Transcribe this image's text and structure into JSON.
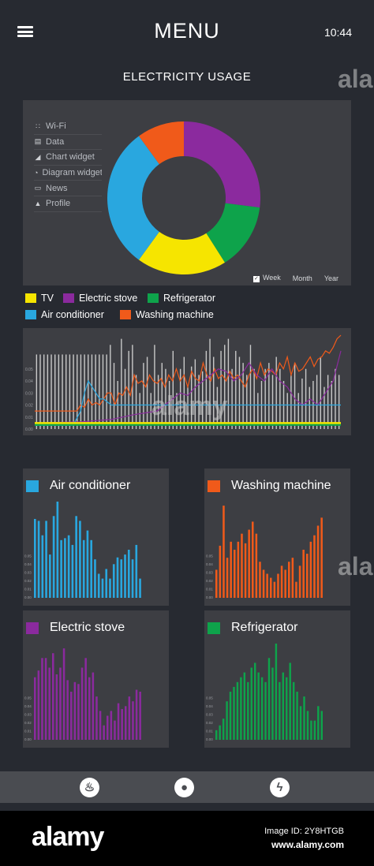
{
  "header": {
    "title": "MENU",
    "time": "10:44"
  },
  "section_title": "ELECTRICITY USAGE",
  "side_menu": [
    {
      "label": "Wi-Fi",
      "icon": "wifi-icon",
      "glyph": "∷"
    },
    {
      "label": "Data",
      "icon": "database-icon",
      "glyph": "▤"
    },
    {
      "label": "Chart widget",
      "icon": "chart-icon",
      "glyph": "◢"
    },
    {
      "label": "Diagram widget",
      "icon": "pie-icon",
      "glyph": "◔"
    },
    {
      "label": "News",
      "icon": "chat-icon",
      "glyph": "▭"
    },
    {
      "label": "Profile",
      "icon": "person-icon",
      "glyph": "▲"
    }
  ],
  "period": {
    "week": "Week",
    "month": "Month",
    "year": "Year",
    "checked": "week"
  },
  "colors": {
    "tv": "#f6e500",
    "electric_stove": "#8b2a9e",
    "refrigerator": "#0ea34b",
    "air_conditioner": "#29a7df",
    "washing_machine": "#f05a1a",
    "bars": "#c9c9c9"
  },
  "legend": [
    {
      "key": "tv",
      "label": "TV"
    },
    {
      "key": "electric_stove",
      "label": "Electric stove"
    },
    {
      "key": "refrigerator",
      "label": "Refrigerator"
    },
    {
      "key": "air_conditioner",
      "label": "Air conditioner"
    },
    {
      "key": "washing_machine",
      "label": "Washing machine"
    }
  ],
  "bar_panels": [
    {
      "key": "air_conditioner",
      "title": "Air conditioner"
    },
    {
      "key": "washing_machine",
      "title": "Washing machine"
    },
    {
      "key": "electric_stove",
      "title": "Electric stove"
    },
    {
      "key": "refrigerator",
      "title": "Refrigerator"
    }
  ],
  "nav_icons": [
    "flame-icon",
    "water-drop-icon",
    "lightning-icon"
  ],
  "footer": {
    "logo": "alamy",
    "image_id": "Image ID: 2Y8HTGB",
    "url": "www.alamy.com"
  },
  "watermark": "alamy",
  "chart_data": [
    {
      "type": "pie",
      "variant": "donut",
      "slices": [
        {
          "name": "Electric stove",
          "color_key": "electric_stove",
          "value": 27
        },
        {
          "name": "Refrigerator",
          "color_key": "refrigerator",
          "value": 14
        },
        {
          "name": "TV",
          "color_key": "tv",
          "value": 19
        },
        {
          "name": "Air conditioner",
          "color_key": "air_conditioner",
          "value": 30
        },
        {
          "name": "Washing machine",
          "color_key": "washing_machine",
          "value": 10
        }
      ]
    },
    {
      "type": "line",
      "yticks": [
        "0.00",
        "0.01",
        "0.02",
        "0.03",
        "0.04",
        "0.05"
      ],
      "ylim": [
        0,
        0.08
      ],
      "bars": [
        0.062,
        0.062,
        0.062,
        0.062,
        0.062,
        0.062,
        0.062,
        0.062,
        0.062,
        0.062,
        0.062,
        0.062,
        0.062,
        0.062,
        0.062,
        0.062,
        0.062,
        0.062,
        0.062,
        0.062,
        0.07,
        0.055,
        0.04,
        0.075,
        0.05,
        0.065,
        0.07,
        0.045,
        0.03,
        0.055,
        0.06,
        0.03,
        0.07,
        0.045,
        0.055,
        0.05,
        0.04,
        0.065,
        0.03,
        0.05,
        0.06,
        0.035,
        0.052,
        0.058,
        0.045,
        0.048,
        0.065,
        0.075,
        0.06,
        0.035,
        0.065,
        0.07,
        0.075,
        0.05,
        0.065,
        0.06,
        0.055,
        0.045,
        0.07,
        0.05,
        0.03,
        0.04,
        0.05,
        0.055,
        0.045,
        0.06,
        0.05,
        0.04,
        0.03,
        0.045,
        0.055,
        0.03,
        0.042,
        0.05,
        0.035,
        0.04,
        0.045,
        0.06,
        0.035,
        0.045,
        0.04,
        0.05,
        0.045
      ],
      "series": [
        {
          "name": "Washing machine",
          "color_key": "washing_machine",
          "x": [
            0,
            10,
            20,
            30,
            35,
            40,
            45,
            50,
            55,
            60,
            65,
            70,
            75,
            80,
            85,
            90,
            95,
            100,
            105,
            110,
            115,
            120,
            125,
            130,
            135,
            140,
            145,
            150,
            155,
            160,
            165,
            170,
            175,
            180,
            185,
            190,
            195,
            200,
            205,
            210,
            215,
            220,
            225,
            230,
            235,
            240,
            245,
            250,
            255,
            260,
            265,
            270,
            275,
            280,
            285,
            290,
            295,
            300,
            305,
            310,
            315,
            320,
            325,
            330,
            335,
            340,
            345,
            350,
            355,
            360,
            365,
            370,
            375,
            380,
            385,
            390,
            395,
            400
          ],
          "y": [
            0.015,
            0.015,
            0.015,
            0.015,
            0.015,
            0.015,
            0.015,
            0.015,
            0.015,
            0.02,
            0.018,
            0.025,
            0.02,
            0.022,
            0.02,
            0.025,
            0.03,
            0.03,
            0.02,
            0.03,
            0.028,
            0.035,
            0.028,
            0.045,
            0.038,
            0.04,
            0.035,
            0.045,
            0.04,
            0.038,
            0.042,
            0.035,
            0.045,
            0.04,
            0.05,
            0.04,
            0.045,
            0.035,
            0.048,
            0.042,
            0.04,
            0.055,
            0.045,
            0.04,
            0.05,
            0.042,
            0.045,
            0.04,
            0.048,
            0.042,
            0.045,
            0.04,
            0.035,
            0.045,
            0.05,
            0.042,
            0.055,
            0.045,
            0.05,
            0.048,
            0.045,
            0.055,
            0.05,
            0.06,
            0.045,
            0.055,
            0.048,
            0.05,
            0.055,
            0.06,
            0.052,
            0.058,
            0.06,
            0.065,
            0.063,
            0.068,
            0.075,
            0.078
          ]
        },
        {
          "name": "Electric stove",
          "color_key": "electric_stove",
          "x": [
            0,
            60,
            100,
            130,
            160,
            170,
            180,
            190,
            200,
            210,
            220,
            230,
            240,
            250,
            260,
            270,
            280,
            290,
            300,
            310,
            320,
            330,
            340,
            350,
            360,
            370,
            380,
            390,
            400
          ],
          "y": [
            0.005,
            0.006,
            0.008,
            0.012,
            0.015,
            0.02,
            0.025,
            0.03,
            0.028,
            0.035,
            0.04,
            0.045,
            0.05,
            0.048,
            0.04,
            0.045,
            0.055,
            0.045,
            0.04,
            0.05,
            0.04,
            0.035,
            0.025,
            0.02,
            0.025,
            0.02,
            0.03,
            0.04,
            0.065
          ]
        },
        {
          "name": "Air conditioner",
          "color_key": "air_conditioner",
          "x": [
            0,
            50,
            60,
            65,
            70,
            75,
            80,
            85,
            90,
            100,
            150,
            200,
            300,
            400
          ],
          "y": [
            0.003,
            0.003,
            0.015,
            0.03,
            0.04,
            0.035,
            0.03,
            0.025,
            0.025,
            0.02,
            0.02,
            0.02,
            0.02,
            0.02
          ]
        },
        {
          "name": "Refrigerator",
          "color_key": "refrigerator",
          "x": [
            0,
            400
          ],
          "y": [
            0.0035,
            0.0035
          ]
        },
        {
          "name": "TV",
          "color_key": "tv",
          "x": [
            0,
            400
          ],
          "y": [
            0.005,
            0.005
          ]
        }
      ]
    },
    {
      "type": "bar",
      "title": "Air conditioner",
      "color_key": "air_conditioner",
      "yticks": [
        "0.00",
        "0.01",
        "0.02",
        "0.03",
        "0.04",
        "0.05"
      ],
      "ylim": [
        0,
        0.1
      ],
      "values": [
        0.082,
        0.08,
        0.065,
        0.08,
        0.045,
        0.085,
        0.1,
        0.06,
        0.062,
        0.065,
        0.055,
        0.085,
        0.08,
        0.06,
        0.07,
        0.06,
        0.04,
        0.025,
        0.02,
        0.03,
        0.02,
        0.035,
        0.042,
        0.04,
        0.045,
        0.05,
        0.04,
        0.055,
        0.02
      ]
    },
    {
      "type": "bar",
      "title": "Washing machine",
      "color_key": "washing_machine",
      "yticks": [
        "0.00",
        "0.01",
        "0.02",
        "0.03",
        "0.04",
        "0.05"
      ],
      "ylim": [
        0,
        0.12
      ],
      "values": [
        0.035,
        0.065,
        0.115,
        0.05,
        0.07,
        0.06,
        0.07,
        0.08,
        0.068,
        0.085,
        0.095,
        0.08,
        0.045,
        0.035,
        0.03,
        0.025,
        0.02,
        0.03,
        0.04,
        0.035,
        0.045,
        0.05,
        0.02,
        0.04,
        0.06,
        0.055,
        0.07,
        0.078,
        0.09,
        0.1
      ]
    },
    {
      "type": "bar",
      "title": "Electric stove",
      "color_key": "electric_stove",
      "yticks": [
        "0.00",
        "0.01",
        "0.02",
        "0.03",
        "0.04",
        "0.05"
      ],
      "ylim": [
        0,
        0.1
      ],
      "values": [
        0.065,
        0.072,
        0.085,
        0.085,
        0.075,
        0.09,
        0.068,
        0.075,
        0.095,
        0.062,
        0.05,
        0.06,
        0.058,
        0.075,
        0.085,
        0.065,
        0.07,
        0.045,
        0.03,
        0.015,
        0.025,
        0.03,
        0.02,
        0.038,
        0.032,
        0.035,
        0.045,
        0.04,
        0.052,
        0.05
      ]
    },
    {
      "type": "bar",
      "title": "Refrigerator",
      "color_key": "refrigerator",
      "yticks": [
        "0.00",
        "0.01",
        "0.02",
        "0.03",
        "0.04",
        "0.05"
      ],
      "ylim": [
        0,
        0.1
      ],
      "values": [
        0.01,
        0.015,
        0.022,
        0.04,
        0.05,
        0.055,
        0.06,
        0.065,
        0.07,
        0.06,
        0.075,
        0.08,
        0.07,
        0.065,
        0.06,
        0.085,
        0.075,
        0.1,
        0.06,
        0.07,
        0.065,
        0.08,
        0.06,
        0.05,
        0.035,
        0.045,
        0.03,
        0.02,
        0.02,
        0.035,
        0.03
      ]
    }
  ]
}
